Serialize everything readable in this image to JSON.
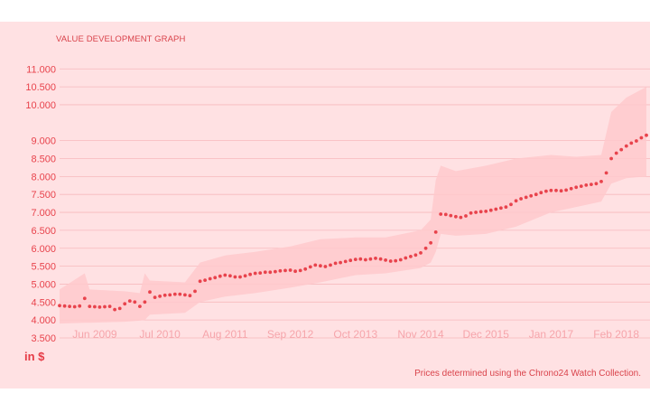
{
  "chart_data": {
    "type": "line",
    "title": "VALUE DEVELOPMENT GRAPH",
    "unit_label": "in $",
    "note": "Prices determined using the Chrono24 Watch Collection.",
    "xlabel": "",
    "ylabel": "",
    "y_ticks": [
      "11.000",
      "10.500",
      "10.000",
      "9.000",
      "8.500",
      "8.000",
      "7.500",
      "7.000",
      "6.500",
      "6.000",
      "5.500",
      "5.000",
      "4.500",
      "4.000",
      "3.500"
    ],
    "y_tick_values": [
      11000,
      10500,
      10000,
      9000,
      8500,
      8000,
      7500,
      7000,
      6500,
      6000,
      5500,
      5000,
      4500,
      4000,
      3500
    ],
    "ylim": [
      3500,
      11000
    ],
    "x_ticks": [
      "Jun 2009",
      "Jul 2010",
      "Aug 2011",
      "Sep 2012",
      "Oct 2013",
      "Nov 2014",
      "Dec 2015",
      "Jan 2017",
      "Feb 2018"
    ],
    "x_range_months": [
      "Nov 2008",
      "Aug 2018"
    ],
    "grid": true,
    "series": [
      {
        "style": "dotted",
        "color": "#e8434c",
        "points": [
          [
            "Nov 2008",
            4400
          ],
          [
            "Dec 2008",
            4390
          ],
          [
            "Jan 2009",
            4380
          ],
          [
            "Feb 2009",
            4370
          ],
          [
            "Mar 2009",
            4390
          ],
          [
            "Apr 2009",
            4600
          ],
          [
            "May 2009",
            4380
          ],
          [
            "Jun 2009",
            4370
          ],
          [
            "Jul 2009",
            4360
          ],
          [
            "Aug 2009",
            4370
          ],
          [
            "Sep 2009",
            4380
          ],
          [
            "Oct 2009",
            4290
          ],
          [
            "Nov 2009",
            4320
          ],
          [
            "Dec 2009",
            4450
          ],
          [
            "Jan 2010",
            4530
          ],
          [
            "Feb 2010",
            4500
          ],
          [
            "Mar 2010",
            4380
          ],
          [
            "Apr 2010",
            4500
          ],
          [
            "May 2010",
            4780
          ],
          [
            "Jun 2010",
            4630
          ],
          [
            "Jul 2010",
            4660
          ],
          [
            "Aug 2010",
            4690
          ],
          [
            "Sep 2010",
            4700
          ],
          [
            "Oct 2010",
            4720
          ],
          [
            "Nov 2010",
            4720
          ],
          [
            "Dec 2010",
            4700
          ],
          [
            "Jan 2011",
            4680
          ],
          [
            "Feb 2011",
            4800
          ],
          [
            "Mar 2011",
            5080
          ],
          [
            "Apr 2011",
            5110
          ],
          [
            "May 2011",
            5150
          ],
          [
            "Jun 2011",
            5180
          ],
          [
            "Jul 2011",
            5220
          ],
          [
            "Aug 2011",
            5250
          ],
          [
            "Sep 2011",
            5230
          ],
          [
            "Oct 2011",
            5200
          ],
          [
            "Nov 2011",
            5200
          ],
          [
            "Dec 2011",
            5230
          ],
          [
            "Jan 2012",
            5270
          ],
          [
            "Feb 2012",
            5300
          ],
          [
            "Mar 2012",
            5310
          ],
          [
            "Apr 2012",
            5330
          ],
          [
            "May 2012",
            5330
          ],
          [
            "Jun 2012",
            5350
          ],
          [
            "Jul 2012",
            5370
          ],
          [
            "Aug 2012",
            5380
          ],
          [
            "Sep 2012",
            5390
          ],
          [
            "Oct 2012",
            5360
          ],
          [
            "Nov 2012",
            5380
          ],
          [
            "Dec 2012",
            5420
          ],
          [
            "Jan 2013",
            5480
          ],
          [
            "Feb 2013",
            5530
          ],
          [
            "Mar 2013",
            5510
          ],
          [
            "Apr 2013",
            5490
          ],
          [
            "May 2013",
            5530
          ],
          [
            "Jun 2013",
            5580
          ],
          [
            "Jul 2013",
            5600
          ],
          [
            "Aug 2013",
            5630
          ],
          [
            "Sep 2013",
            5660
          ],
          [
            "Oct 2013",
            5690
          ],
          [
            "Nov 2013",
            5700
          ],
          [
            "Dec 2013",
            5680
          ],
          [
            "Jan 2014",
            5700
          ],
          [
            "Feb 2014",
            5720
          ],
          [
            "Mar 2014",
            5700
          ],
          [
            "Apr 2014",
            5670
          ],
          [
            "May 2014",
            5640
          ],
          [
            "Jun 2014",
            5650
          ],
          [
            "Jul 2014",
            5680
          ],
          [
            "Aug 2014",
            5730
          ],
          [
            "Sep 2014",
            5770
          ],
          [
            "Oct 2014",
            5810
          ],
          [
            "Nov 2014",
            5870
          ],
          [
            "Dec 2014",
            6000
          ],
          [
            "Jan 2015",
            6150
          ],
          [
            "Feb 2015",
            6450
          ],
          [
            "Mar 2015",
            6950
          ],
          [
            "Apr 2015",
            6940
          ],
          [
            "May 2015",
            6910
          ],
          [
            "Jun 2015",
            6880
          ],
          [
            "Jul 2015",
            6860
          ],
          [
            "Aug 2015",
            6900
          ],
          [
            "Sep 2015",
            6980
          ],
          [
            "Oct 2015",
            7000
          ],
          [
            "Nov 2015",
            7020
          ],
          [
            "Dec 2015",
            7030
          ],
          [
            "Jan 2016",
            7060
          ],
          [
            "Feb 2016",
            7090
          ],
          [
            "Mar 2016",
            7120
          ],
          [
            "Apr 2016",
            7150
          ],
          [
            "May 2016",
            7220
          ],
          [
            "Jun 2016",
            7320
          ],
          [
            "Jul 2016",
            7380
          ],
          [
            "Aug 2016",
            7420
          ],
          [
            "Sep 2016",
            7460
          ],
          [
            "Oct 2016",
            7500
          ],
          [
            "Nov 2016",
            7550
          ],
          [
            "Dec 2016",
            7590
          ],
          [
            "Jan 2017",
            7610
          ],
          [
            "Feb 2017",
            7610
          ],
          [
            "Mar 2017",
            7600
          ],
          [
            "Apr 2017",
            7620
          ],
          [
            "May 2017",
            7660
          ],
          [
            "Jun 2017",
            7700
          ],
          [
            "Jul 2017",
            7730
          ],
          [
            "Aug 2017",
            7760
          ],
          [
            "Sep 2017",
            7780
          ],
          [
            "Oct 2017",
            7800
          ],
          [
            "Nov 2017",
            7860
          ],
          [
            "Dec 2017",
            8100
          ],
          [
            "Jan 2018",
            8500
          ],
          [
            "Feb 2018",
            8650
          ],
          [
            "Mar 2018",
            8750
          ],
          [
            "Apr 2018",
            8850
          ],
          [
            "May 2018",
            8930
          ],
          [
            "Jun 2018",
            8990
          ],
          [
            "Jul 2018",
            9080
          ],
          [
            "Aug 2018",
            9150
          ]
        ]
      }
    ],
    "band": {
      "color": "#ffc9cd",
      "points": [
        [
          "Nov 2008",
          3900,
          4850
        ],
        [
          "Apr 2009",
          3920,
          5300
        ],
        [
          "May 2009",
          3920,
          4850
        ],
        [
          "Dec 2009",
          3950,
          4800
        ],
        [
          "Mar 2010",
          3980,
          4750
        ],
        [
          "Apr 2010",
          4000,
          5300
        ],
        [
          "May 2010",
          4150,
          5100
        ],
        [
          "Dec 2010",
          4200,
          5050
        ],
        [
          "Mar 2011",
          4500,
          5600
        ],
        [
          "Aug 2011",
          4650,
          5800
        ],
        [
          "Feb 2012",
          4750,
          5900
        ],
        [
          "Sep 2012",
          4900,
          6050
        ],
        [
          "Mar 2013",
          5050,
          6250
        ],
        [
          "Oct 2013",
          5250,
          6300
        ],
        [
          "Apr 2014",
          5300,
          6300
        ],
        [
          "Nov 2014",
          5450,
          6500
        ],
        [
          "Jan 2015",
          5600,
          6800
        ],
        [
          "Feb 2015",
          5900,
          7900
        ],
        [
          "Mar 2015",
          6400,
          8300
        ],
        [
          "Jun 2015",
          6350,
          8150
        ],
        [
          "Dec 2015",
          6400,
          8300
        ],
        [
          "Jun 2016",
          6600,
          8500
        ],
        [
          "Jan 2017",
          7000,
          8600
        ],
        [
          "Jun 2017",
          7150,
          8550
        ],
        [
          "Nov 2017",
          7300,
          8600
        ],
        [
          "Jan 2018",
          7800,
          9800
        ],
        [
          "Apr 2018",
          7950,
          10200
        ],
        [
          "Aug 2018",
          8000,
          10500
        ]
      ]
    }
  }
}
